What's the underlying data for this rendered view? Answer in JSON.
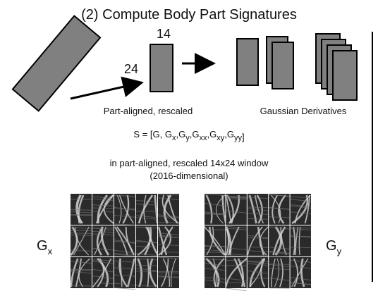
{
  "title": "(2) Compute Body Part Signatures",
  "size_width": "14",
  "size_height": "24",
  "caption_left": "Part-aligned, rescaled",
  "caption_right": "Gaussian Derivatives",
  "formula": {
    "prefix": "S = [G,",
    "terms": [
      {
        "base": "G",
        "sub": "x",
        "sep": ","
      },
      {
        "base": "G",
        "sub": "y",
        "sep": ","
      },
      {
        "base": "G",
        "sub": "xx",
        "sep": ","
      },
      {
        "base": "G",
        "sub": "xy",
        "sep": ","
      },
      {
        "base": "G",
        "sub": "yy"
      }
    ],
    "suffix": "]"
  },
  "window_note": [
    "in part-aligned, rescaled 14x24 window",
    "(2016-dimensional)"
  ],
  "gx_label": {
    "base": "G",
    "sub": "x"
  },
  "gy_label": {
    "base": "G",
    "sub": "y"
  }
}
